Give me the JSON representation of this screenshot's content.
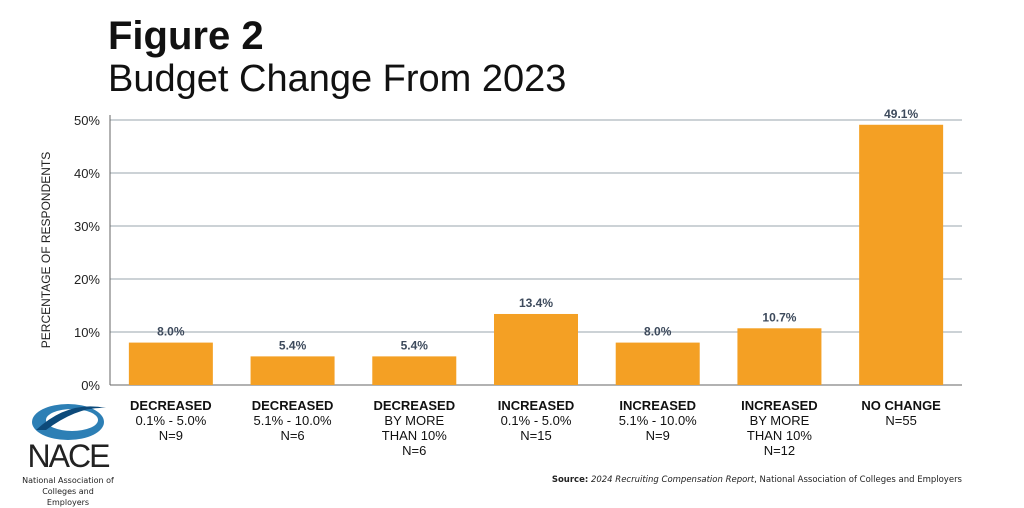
{
  "title": "Figure 2",
  "subtitle": "Budget Change From 2023",
  "source_label": "Source:",
  "source_title": "2024 Recruiting Compensation Report",
  "source_rest": ", National Association of Colleges and Employers",
  "logo": {
    "name": "NACE",
    "subtitle_line1": "National Association of",
    "subtitle_line2": "Colleges and Employers"
  },
  "colors": {
    "bar": "#F4A024",
    "label": "#3D4A5C",
    "grid": "#9aa4ad"
  },
  "chart_data": {
    "type": "bar",
    "ylabel": "PERCENTAGE OF RESPONDENTS",
    "ylim": [
      0,
      50
    ],
    "yticks": [
      "0%",
      "10%",
      "20%",
      "30%",
      "40%",
      "50%"
    ],
    "grid": true,
    "categories": [
      [
        "DECREASED",
        "0.1% - 5.0%",
        "N=9"
      ],
      [
        "DECREASED",
        "5.1% - 10.0%",
        "N=6"
      ],
      [
        "DECREASED",
        "BY MORE",
        "THAN 10%",
        "N=6"
      ],
      [
        "INCREASED",
        "0.1% - 5.0%",
        "N=15"
      ],
      [
        "INCREASED",
        "5.1% - 10.0%",
        "N=9"
      ],
      [
        "INCREASED",
        "BY MORE",
        "THAN 10%",
        "N=12"
      ],
      [
        "NO CHANGE",
        "N=55"
      ]
    ],
    "values": [
      8.0,
      5.4,
      5.4,
      13.4,
      8.0,
      10.7,
      49.1
    ],
    "data_labels": [
      "8.0%",
      "5.4%",
      "5.4%",
      "13.4%",
      "8.0%",
      "10.7%",
      "49.1%"
    ]
  }
}
